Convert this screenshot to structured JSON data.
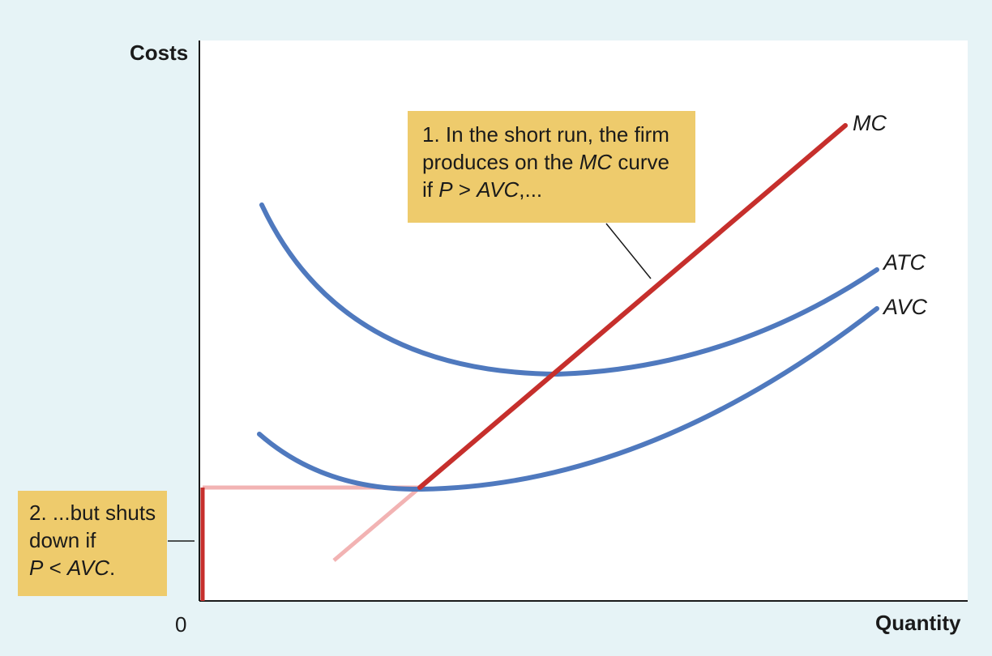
{
  "chart_data": {
    "type": "line",
    "title": "",
    "xlabel": "Quantity",
    "ylabel": "Costs",
    "origin_label": "0",
    "grid": false,
    "series": [
      {
        "name": "MC",
        "color": "#c62f2c",
        "x": [
          0.17,
          0.28,
          0.5,
          0.85
        ],
        "y": [
          0.08,
          0.2,
          0.45,
          0.85
        ]
      },
      {
        "name": "ATC",
        "color": "#4f79be",
        "x": [
          0.08,
          0.3,
          0.45,
          0.6,
          0.88
        ],
        "y": [
          0.7,
          0.42,
          0.405,
          0.43,
          0.6
        ]
      },
      {
        "name": "AVC",
        "color": "#4f79be",
        "x": [
          0.08,
          0.29,
          0.6,
          0.88
        ],
        "y": [
          0.3,
          0.2,
          0.3,
          0.52
        ]
      }
    ],
    "shutdown_price_line": {
      "color": "#f2b3b3"
    },
    "annotations": [
      {
        "id": "supply-note",
        "lines": [
          "1. In the short run, the firm",
          "produces on the MC curve",
          "if P > AVC,..."
        ]
      },
      {
        "id": "shutdown-note",
        "lines": [
          "2. ...but shuts",
          "down if",
          "P < AVC."
        ]
      }
    ]
  },
  "colors": {
    "background": "#e6f3f6",
    "plot": "#ffffff",
    "callout": "#eecb6c",
    "mc": "#c62f2c",
    "mc_faded": "#f2b3b3",
    "cost_curves": "#4f79be",
    "axis": "#1a1a1a"
  }
}
